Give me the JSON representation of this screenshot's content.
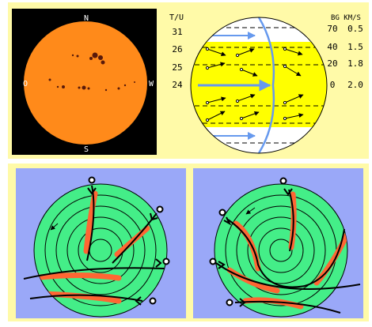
{
  "colors": {
    "panel_bg": "#fffaa8",
    "sun_bg": "#000000",
    "sun_disc": "#ff8a1a",
    "spots": "#5a1a0a",
    "band": "#ffff00",
    "polar_bg": "#9aa8f8",
    "polar_disc": "#44ee88",
    "highlight": "#ff6633",
    "flow": "#6699ee"
  },
  "sun_image": {
    "compass": {
      "north": "N",
      "south": "S",
      "east": "O",
      "west": "W"
    }
  },
  "rotation_diagram": {
    "left_header": "T/U",
    "left_values": [
      "31",
      "26",
      "25",
      "24"
    ],
    "right_header": "BG KM/S",
    "right_values": [
      {
        "latitude": "70",
        "speed": "0.5"
      },
      {
        "latitude": "40",
        "speed": "1.5"
      },
      {
        "latitude": "20",
        "speed": "1.8"
      },
      {
        "latitude": "0",
        "speed": "2.0"
      }
    ]
  },
  "polar_views": [
    {
      "name": "polar-view-left"
    },
    {
      "name": "polar-view-right"
    }
  ]
}
